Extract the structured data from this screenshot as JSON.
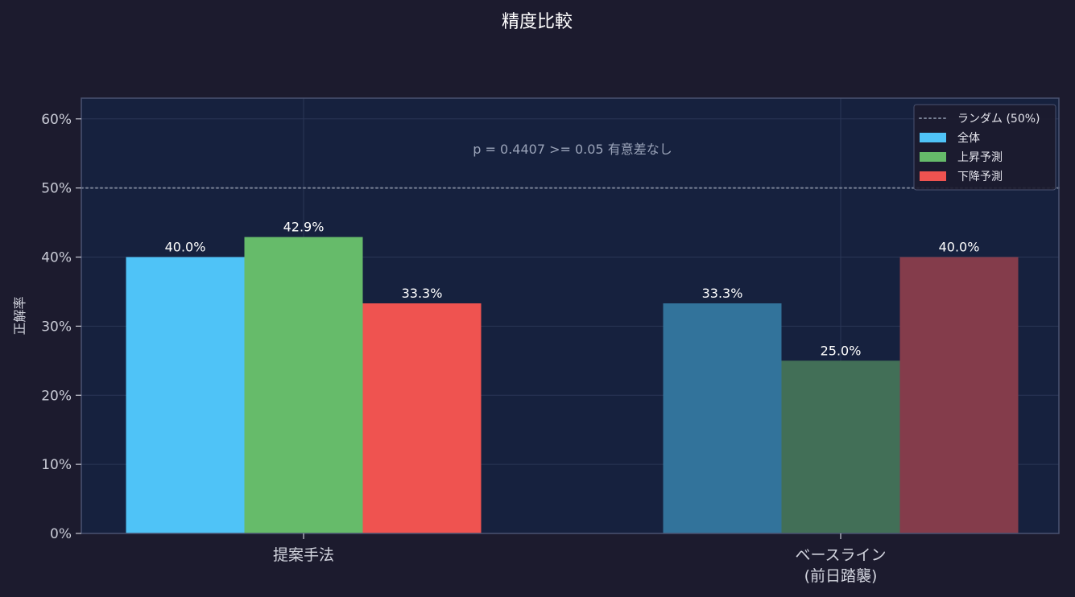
{
  "chart_data": {
    "type": "bar",
    "title": "精度比較",
    "xlabel": "",
    "ylabel": "正解率",
    "ylim": [
      0,
      0.63
    ],
    "yticks": [
      0,
      0.1,
      0.2,
      0.3,
      0.4,
      0.5,
      0.6
    ],
    "ytick_labels": [
      "0%",
      "10%",
      "20%",
      "30%",
      "40%",
      "50%",
      "60%"
    ],
    "categories": [
      "提案手法",
      "ベースライン\n(前日踏襲)"
    ],
    "series": [
      {
        "name": "全体",
        "values": [
          0.4,
          0.333
        ],
        "labels": [
          "40.0%",
          "33.3%"
        ],
        "colors": [
          "#4fc3f7",
          "#32739b"
        ]
      },
      {
        "name": "上昇予測",
        "values": [
          0.429,
          0.25
        ],
        "labels": [
          "42.9%",
          "25.0%"
        ],
        "colors": [
          "#66bb6a",
          "#426f57"
        ]
      },
      {
        "name": "下降予測",
        "values": [
          0.333,
          0.4
        ],
        "labels": [
          "33.3%",
          "40.0%"
        ],
        "colors": [
          "#ef5350",
          "#843c4b"
        ]
      }
    ],
    "reference_line": {
      "value": 0.5,
      "label": "ランダム (50%)",
      "style": "dotted",
      "color": "#7a8296"
    },
    "annotation": "p = 0.4407 >= 0.05  有意差なし",
    "grid": true,
    "legend_position": "top-right",
    "background": "#1c1b2e",
    "plot_background": "#16213e"
  }
}
